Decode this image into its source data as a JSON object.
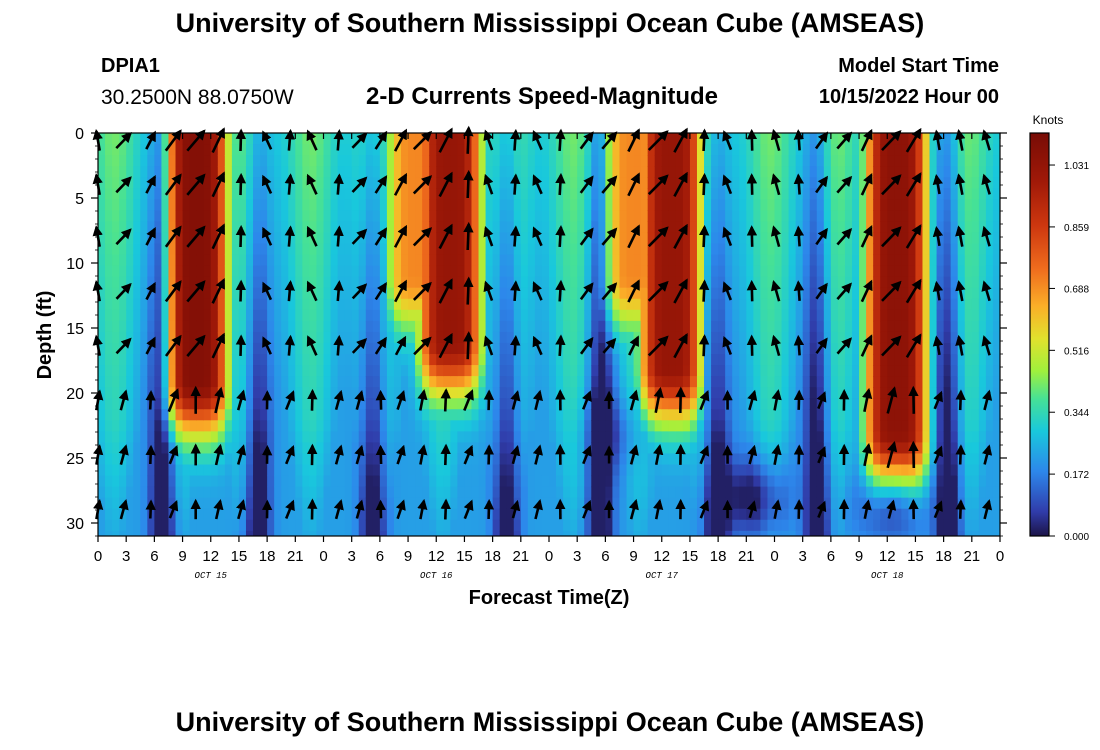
{
  "header": {
    "title": "University of Southern Mississippi Ocean Cube (AMSEAS)",
    "station_id": "DPIA1",
    "coordinates": "30.2500N  88.0750W",
    "subtitle": "2-D Currents Speed-Magnitude",
    "model_start_label": "Model Start Time",
    "model_start_value": "10/15/2022 Hour 00"
  },
  "footer": {
    "title": "University of Southern Mississippi Ocean Cube (AMSEAS)"
  },
  "chart_data": {
    "type": "heatmap",
    "title": "2-D Currents Speed-Magnitude",
    "xlabel": "Forecast Time(Z)",
    "ylabel": "Depth (ft)",
    "x_range_hours": [
      0,
      96
    ],
    "y_range_ft": [
      0,
      31
    ],
    "x_tick_hours": [
      0,
      3,
      6,
      9,
      12,
      15,
      18,
      21,
      24,
      27,
      30,
      33,
      36,
      39,
      42,
      45,
      48,
      51,
      54,
      57,
      60,
      63,
      66,
      69,
      72,
      75,
      78,
      81,
      84,
      87,
      90,
      93,
      96
    ],
    "x_tick_labels": [
      "0",
      "3",
      "6",
      "9",
      "12",
      "15",
      "18",
      "21",
      "0",
      "3",
      "6",
      "9",
      "12",
      "15",
      "18",
      "21",
      "0",
      "3",
      "6",
      "9",
      "12",
      "15",
      "18",
      "21",
      "0",
      "3",
      "6",
      "9",
      "12",
      "15",
      "18",
      "21",
      "0"
    ],
    "date_labels": [
      {
        "label": "OCT 15",
        "hour": 12
      },
      {
        "label": "OCT 16",
        "hour": 36
      },
      {
        "label": "OCT 17",
        "hour": 60
      },
      {
        "label": "OCT 18",
        "hour": 84
      }
    ],
    "y_ticks": [
      0,
      5,
      10,
      15,
      20,
      25,
      30
    ],
    "colorbar": {
      "unit": "Knots",
      "min": 0.0,
      "max": 1.12,
      "ticks": [
        0.0,
        0.172,
        0.344,
        0.516,
        0.688,
        0.859,
        1.031
      ],
      "tick_labels": [
        "0.000",
        "0.172",
        "0.344",
        "0.516",
        "0.688",
        "0.859",
        "1.031"
      ]
    },
    "speed_peaks": [
      {
        "center_hour": 10.5,
        "peak_knots": 1.08,
        "bottom_depth_ft": 19
      },
      {
        "center_hour": 34.0,
        "peak_knots": 0.7,
        "bottom_depth_ft": 11
      },
      {
        "center_hour": 37.5,
        "peak_knots": 1.02,
        "bottom_depth_ft": 16
      },
      {
        "center_hour": 57.0,
        "peak_knots": 0.7,
        "bottom_depth_ft": 11
      },
      {
        "center_hour": 61.0,
        "peak_knots": 1.02,
        "bottom_depth_ft": 18
      },
      {
        "center_hour": 85.0,
        "peak_knots": 1.05,
        "bottom_depth_ft": 23
      }
    ],
    "vector_rows_ft": [
      0.6,
      4.0,
      8.0,
      12.2,
      16.4,
      20.6,
      24.8,
      29.0
    ],
    "vector_cols_hours": [
      0.0,
      2.7,
      5.6,
      8.0,
      10.4,
      12.8,
      15.2,
      18.0,
      20.4,
      22.8,
      25.6,
      27.8,
      30.1,
      32.2,
      34.5,
      37.0,
      39.4,
      41.6,
      44.4,
      46.8,
      49.2,
      52.0,
      54.4,
      57.0,
      59.6,
      62.0,
      64.5,
      67.0,
      69.6,
      72.2,
      74.6,
      77.0,
      79.4,
      81.8,
      84.4,
      86.8,
      89.4,
      91.8,
      94.6
    ]
  }
}
